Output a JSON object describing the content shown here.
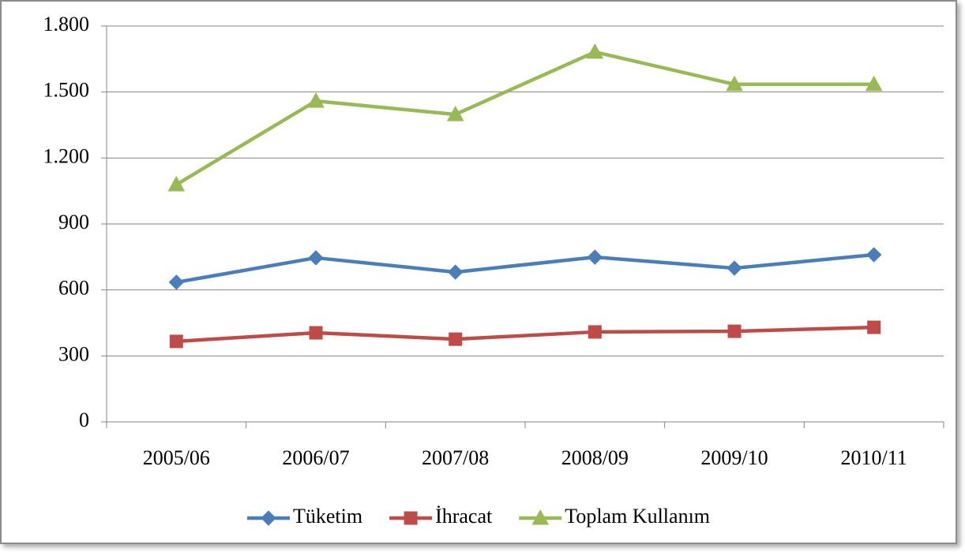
{
  "chart_data": {
    "type": "line",
    "categories": [
      "2005/06",
      "2006/07",
      "2007/08",
      "2008/09",
      "2009/10",
      "2010/11"
    ],
    "series": [
      {
        "name": "Tüketim",
        "color": "#4a7ebb",
        "marker": "diamond",
        "values": [
          635,
          746,
          681,
          749,
          699,
          760
        ]
      },
      {
        "name": "İhracat",
        "color": "#be4b48",
        "marker": "square",
        "values": [
          366,
          405,
          376,
          409,
          412,
          430
        ]
      },
      {
        "name": "Toplam Kullanım",
        "color": "#98b954",
        "marker": "triangle",
        "values": [
          1079,
          1459,
          1398,
          1682,
          1535,
          1535
        ]
      }
    ],
    "ylim": [
      0,
      1800
    ],
    "yticks": [
      0,
      300,
      600,
      900,
      {
        "value": 1200,
        "label": "1.200"
      },
      {
        "value": 1500,
        "label": "1.500"
      },
      {
        "value": 1800,
        "label": "1.800"
      }
    ],
    "grid": true,
    "legend": "bottom"
  }
}
